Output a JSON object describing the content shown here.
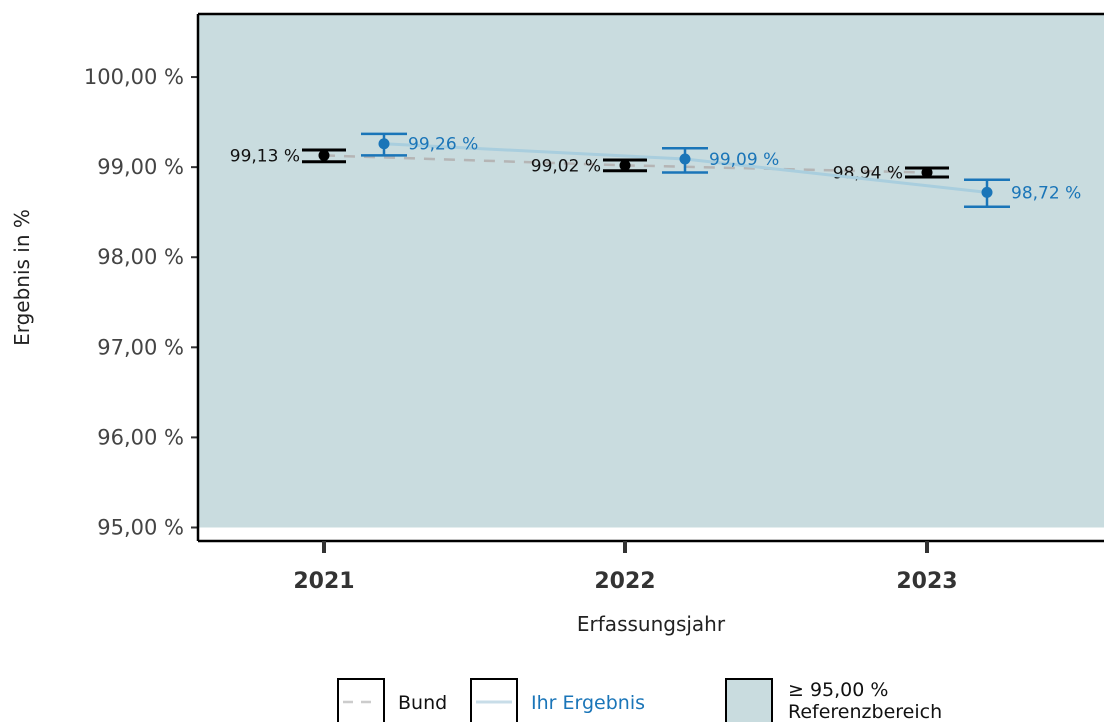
{
  "chart_data": {
    "type": "line",
    "xlabel": "Erfassungsjahr",
    "ylabel": "Ergebnis in %",
    "categories": [
      "2021",
      "2022",
      "2023"
    ],
    "y_ticks": [
      "95,00 %",
      "96,00 %",
      "97,00 %",
      "98,00 %",
      "99,00 %",
      "100,00 %"
    ],
    "y_tick_values": [
      95,
      96,
      97,
      98,
      99,
      100
    ],
    "ylim": [
      94.85,
      100.7
    ],
    "reference_range": {
      "min": 95.0,
      "max": 100.7,
      "label_value": "≥ 95,00 %",
      "label_text": "Referenzbereich",
      "color": "#c9dcdf"
    },
    "series": [
      {
        "name": "Bund",
        "color": "#000000",
        "line_color": "#b5b5b5",
        "line_style": "dashed",
        "values": [
          99.13,
          99.02,
          98.94
        ],
        "ci_low": [
          99.06,
          98.96,
          98.89
        ],
        "ci_high": [
          99.19,
          99.08,
          98.99
        ],
        "labels": [
          "99,13 %",
          "99,02 %",
          "98,94 %"
        ]
      },
      {
        "name": "Ihr Ergebnis",
        "color": "#1a75b8",
        "line_color": "#a9cede",
        "line_style": "solid",
        "values": [
          99.26,
          99.09,
          98.72
        ],
        "ci_low": [
          99.13,
          98.94,
          98.56
        ],
        "ci_high": [
          99.37,
          99.21,
          98.86
        ],
        "labels": [
          "99,26 %",
          "99,09 %",
          "98,72 %"
        ]
      }
    ],
    "legend": {
      "placement": "bottom",
      "items": [
        "Bund",
        "Ihr Ergebnis"
      ]
    }
  }
}
